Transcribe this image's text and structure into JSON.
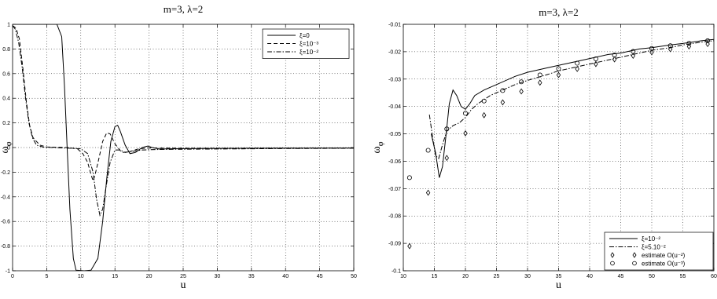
{
  "chart_data": [
    {
      "type": "line",
      "title": "m=3, λ=2",
      "xlabel": "u",
      "ylabel_main": "ω",
      "ylabel_sub": "φ",
      "xlim": [
        0,
        50
      ],
      "ylim": [
        -1,
        1
      ],
      "xticks": [
        0,
        5,
        10,
        15,
        20,
        25,
        30,
        35,
        40,
        45,
        50
      ],
      "yticks": [
        -1,
        -0.8,
        -0.6,
        -0.4,
        -0.2,
        0,
        0.2,
        0.4,
        0.6,
        0.8,
        1
      ],
      "grid": true,
      "legend_position": "top-right",
      "series": [
        {
          "name": "ξ=0",
          "style": "solid",
          "points": [
            [
              0,
              1
            ],
            [
              6.5,
              1
            ],
            [
              7.2,
              0.9
            ],
            [
              7.6,
              0.5
            ],
            [
              8.0,
              0.0
            ],
            [
              8.4,
              -0.5
            ],
            [
              8.9,
              -0.9
            ],
            [
              9.3,
              -0.995
            ],
            [
              10.5,
              -1.0
            ],
            [
              11.5,
              -0.995
            ],
            [
              12.5,
              -0.9
            ],
            [
              13.2,
              -0.6
            ],
            [
              13.8,
              -0.25
            ],
            [
              14.4,
              0.05
            ],
            [
              15.0,
              0.17
            ],
            [
              15.4,
              0.18
            ],
            [
              15.8,
              0.13
            ],
            [
              16.5,
              0.02
            ],
            [
              17.2,
              -0.05
            ],
            [
              18.0,
              -0.04
            ],
            [
              19.0,
              0.0
            ],
            [
              19.8,
              0.012
            ],
            [
              20.5,
              0.0
            ],
            [
              21.5,
              -0.012
            ],
            [
              23,
              -0.01
            ],
            [
              30,
              -0.007
            ],
            [
              40,
              -0.005
            ],
            [
              50,
              -0.004
            ]
          ]
        },
        {
          "name": "ξ=10⁻³",
          "style": "dashed",
          "points": [
            [
              0,
              0.99
            ],
            [
              0.5,
              0.97
            ],
            [
              1.0,
              0.88
            ],
            [
              1.5,
              0.65
            ],
            [
              2.0,
              0.38
            ],
            [
              2.5,
              0.18
            ],
            [
              3.0,
              0.08
            ],
            [
              4.0,
              0.02
            ],
            [
              5.0,
              0.005
            ],
            [
              6,
              0.003
            ],
            [
              8,
              0.0
            ],
            [
              9.5,
              -0.01
            ],
            [
              10.3,
              -0.05
            ],
            [
              11.0,
              -0.12
            ],
            [
              11.5,
              -0.22
            ],
            [
              11.8,
              -0.27
            ],
            [
              12.1,
              -0.22
            ],
            [
              12.6,
              -0.1
            ],
            [
              13.2,
              0.05
            ],
            [
              13.8,
              0.12
            ],
            [
              14.3,
              0.11
            ],
            [
              15.0,
              0.03
            ],
            [
              16.0,
              -0.04
            ],
            [
              17,
              -0.035
            ],
            [
              18.5,
              -0.01
            ],
            [
              20,
              -0.004
            ],
            [
              25,
              -0.006
            ],
            [
              35,
              -0.005
            ],
            [
              50,
              -0.004
            ]
          ]
        },
        {
          "name": "ξ=10⁻²",
          "style": "dashdot",
          "points": [
            [
              0,
              0.99
            ],
            [
              0.4,
              0.96
            ],
            [
              0.9,
              0.85
            ],
            [
              1.4,
              0.65
            ],
            [
              1.9,
              0.4
            ],
            [
              2.4,
              0.2
            ],
            [
              2.9,
              0.08
            ],
            [
              3.5,
              0.02
            ],
            [
              4.5,
              0.003
            ],
            [
              6,
              0.0
            ],
            [
              8,
              -0.005
            ],
            [
              10,
              -0.01
            ],
            [
              11.0,
              -0.05
            ],
            [
              11.8,
              -0.2
            ],
            [
              12.3,
              -0.42
            ],
            [
              12.8,
              -0.55
            ],
            [
              13.2,
              -0.5
            ],
            [
              13.7,
              -0.32
            ],
            [
              14.3,
              -0.12
            ],
            [
              15.0,
              -0.02
            ],
            [
              15.8,
              -0.02
            ],
            [
              16.5,
              -0.04
            ],
            [
              17.5,
              -0.03
            ],
            [
              19,
              -0.02
            ],
            [
              22,
              -0.015
            ],
            [
              30,
              -0.012
            ],
            [
              40,
              -0.008
            ],
            [
              50,
              -0.006
            ]
          ]
        }
      ]
    },
    {
      "type": "line",
      "title": "m=3, λ=2",
      "xlabel": "u",
      "ylabel_main": "ω",
      "ylabel_sub": "φ",
      "xlim": [
        10,
        60
      ],
      "ylim": [
        -0.1,
        -0.01
      ],
      "xticks": [
        10,
        15,
        20,
        25,
        30,
        35,
        40,
        45,
        50,
        55,
        60
      ],
      "yticks": [
        -0.1,
        -0.09,
        -0.08,
        -0.07,
        -0.06,
        -0.05,
        -0.04,
        -0.03,
        -0.02,
        -0.01
      ],
      "xtick_labels": [
        "10",
        "15",
        "20",
        "25",
        "30",
        "35",
        "40",
        "45",
        "50",
        "55",
        "60"
      ],
      "ytick_labels": [
        "-0.1",
        "-0.09",
        "-0.08",
        "-0.07",
        "-0.06",
        "-0.05",
        "-0.04",
        "-0.03",
        "-0.02",
        "-0.01"
      ],
      "grid": true,
      "legend_position": "bottom-right",
      "series": [
        {
          "name": "ξ=10⁻²",
          "style": "solid",
          "points": [
            [
              14.5,
              -0.05
            ],
            [
              15.2,
              -0.057
            ],
            [
              15.8,
              -0.066
            ],
            [
              16.3,
              -0.062
            ],
            [
              16.9,
              -0.05
            ],
            [
              17.4,
              -0.039
            ],
            [
              18.0,
              -0.034
            ],
            [
              18.6,
              -0.036
            ],
            [
              19.3,
              -0.04
            ],
            [
              20.0,
              -0.041
            ],
            [
              20.7,
              -0.039
            ],
            [
              21.5,
              -0.036
            ],
            [
              23,
              -0.034
            ],
            [
              25,
              -0.032
            ],
            [
              28,
              -0.029
            ],
            [
              30,
              -0.0275
            ],
            [
              33,
              -0.026
            ],
            [
              35,
              -0.025
            ],
            [
              38,
              -0.0235
            ],
            [
              40,
              -0.0225
            ],
            [
              43,
              -0.021
            ],
            [
              45,
              -0.0205
            ],
            [
              48,
              -0.019
            ],
            [
              50,
              -0.0185
            ],
            [
              53,
              -0.0175
            ],
            [
              55,
              -0.017
            ],
            [
              58,
              -0.016
            ],
            [
              60,
              -0.0155
            ]
          ]
        },
        {
          "name": "ξ=5.10⁻²",
          "style": "dashdot",
          "points": [
            [
              14.2,
              -0.043
            ],
            [
              14.7,
              -0.051
            ],
            [
              15.2,
              -0.058
            ],
            [
              15.7,
              -0.059
            ],
            [
              16.3,
              -0.054
            ],
            [
              17.0,
              -0.049
            ],
            [
              18.0,
              -0.047
            ],
            [
              19,
              -0.046
            ],
            [
              20,
              -0.044
            ],
            [
              21,
              -0.041
            ],
            [
              22,
              -0.039
            ],
            [
              24,
              -0.036
            ],
            [
              26,
              -0.034
            ],
            [
              28,
              -0.032
            ],
            [
              30,
              -0.0305
            ],
            [
              33,
              -0.0285
            ],
            [
              35,
              -0.027
            ],
            [
              38,
              -0.0255
            ],
            [
              40,
              -0.0245
            ],
            [
              43,
              -0.023
            ],
            [
              45,
              -0.022
            ],
            [
              48,
              -0.0205
            ],
            [
              50,
              -0.0195
            ],
            [
              53,
              -0.0185
            ],
            [
              55,
              -0.0175
            ],
            [
              58,
              -0.0165
            ],
            [
              60,
              -0.016
            ]
          ]
        },
        {
          "name": "estimate O(u⁻²)",
          "style": "diamond",
          "points": [
            [
              11,
              -0.091
            ],
            [
              14,
              -0.0715
            ],
            [
              17,
              -0.0588
            ],
            [
              20,
              -0.0498
            ],
            [
              23,
              -0.0432
            ],
            [
              26,
              -0.0385
            ],
            [
              29,
              -0.0345
            ],
            [
              32,
              -0.0313
            ],
            [
              35,
              -0.0285
            ],
            [
              38,
              -0.0263
            ],
            [
              41,
              -0.0245
            ],
            [
              44,
              -0.0228
            ],
            [
              47,
              -0.0215
            ],
            [
              50,
              -0.0202
            ],
            [
              53,
              -0.0191
            ],
            [
              56,
              -0.0181
            ],
            [
              59,
              -0.0172
            ]
          ]
        },
        {
          "name": "estimate O(u⁻³)",
          "style": "circle",
          "points": [
            [
              11,
              -0.066
            ],
            [
              14,
              -0.056
            ],
            [
              17,
              -0.0482
            ],
            [
              20,
              -0.0425
            ],
            [
              23,
              -0.038
            ],
            [
              26,
              -0.0342
            ],
            [
              29,
              -0.031
            ],
            [
              32,
              -0.0285
            ],
            [
              35,
              -0.0262
            ],
            [
              38,
              -0.0242
            ],
            [
              41,
              -0.0226
            ],
            [
              44,
              -0.0212
            ],
            [
              47,
              -0.0199
            ],
            [
              50,
              -0.0188
            ],
            [
              53,
              -0.0178
            ],
            [
              56,
              -0.0169
            ],
            [
              59,
              -0.016
            ]
          ]
        }
      ]
    }
  ]
}
